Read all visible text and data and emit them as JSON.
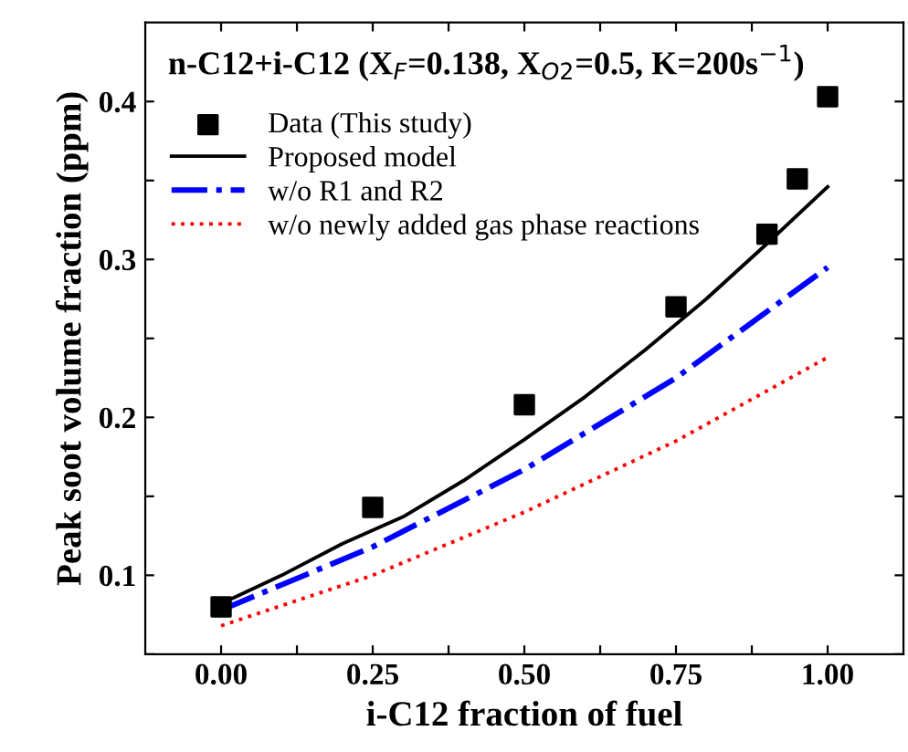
{
  "chart_data": {
    "type": "line",
    "title": "n-C12+i-C12 (X$_{F}$=0.138, X$_{O2}$=0.5, K=200s$^{−1}$)",
    "xlabel": "i-C12 fraction of fuel",
    "ylabel": "Peak soot volume fraction (ppm)",
    "xlim": [
      -0.125,
      1.125
    ],
    "ylim": [
      0.05,
      0.45
    ],
    "xticks": [
      {
        "value": 0.0,
        "label": "0.00"
      },
      {
        "value": 0.125,
        "label": null
      },
      0.25,
      {
        "value": 0.375,
        "label": null
      },
      {
        "value": 0.5,
        "label": "0.50"
      },
      {
        "value": 0.625,
        "label": null
      },
      0.75,
      {
        "value": 0.875,
        "label": null
      },
      {
        "value": 1.0,
        "label": "1.00"
      }
    ],
    "yticks": [
      {
        "value": 0.05,
        "label": null
      },
      0.1,
      {
        "value": 0.15,
        "label": null
      },
      0.2,
      {
        "value": 0.25,
        "label": null
      },
      0.3,
      {
        "value": 0.35,
        "label": null
      },
      0.4
    ],
    "legend": "top left",
    "grid": false,
    "series": [
      {
        "name": "Data (This study)",
        "type": "scatter",
        "marker": "square",
        "color": "#000000",
        "x": [
          0,
          0.25,
          0.5,
          0.75,
          0.9,
          0.95,
          1.0
        ],
        "values": [
          0.08,
          0.143,
          0.208,
          0.27,
          0.316,
          0.351,
          0.403
        ]
      },
      {
        "name": "Proposed model",
        "line_style": "solid",
        "color": "#000000",
        "x": [
          0,
          0.1,
          0.2,
          0.3,
          0.4,
          0.5,
          0.6,
          0.7,
          0.8,
          0.9,
          1.0
        ],
        "values": [
          0.082,
          0.1,
          0.12,
          0.137,
          0.16,
          0.186,
          0.213,
          0.243,
          0.275,
          0.31,
          0.346
        ]
      },
      {
        "name": "w/o R1 and R2",
        "line_style": "dashdot",
        "color": "#0000ff",
        "x": [
          0,
          0.25,
          0.5,
          0.75,
          1.0
        ],
        "values": [
          0.078,
          0.118,
          0.167,
          0.225,
          0.295
        ]
      },
      {
        "name": "w/o newly added gas phase reactions",
        "line_style": "dotted",
        "color": "#ff0000",
        "x": [
          0,
          0.25,
          0.5,
          0.75,
          1.0
        ],
        "values": [
          0.068,
          0.1,
          0.14,
          0.185,
          0.238
        ]
      }
    ]
  }
}
